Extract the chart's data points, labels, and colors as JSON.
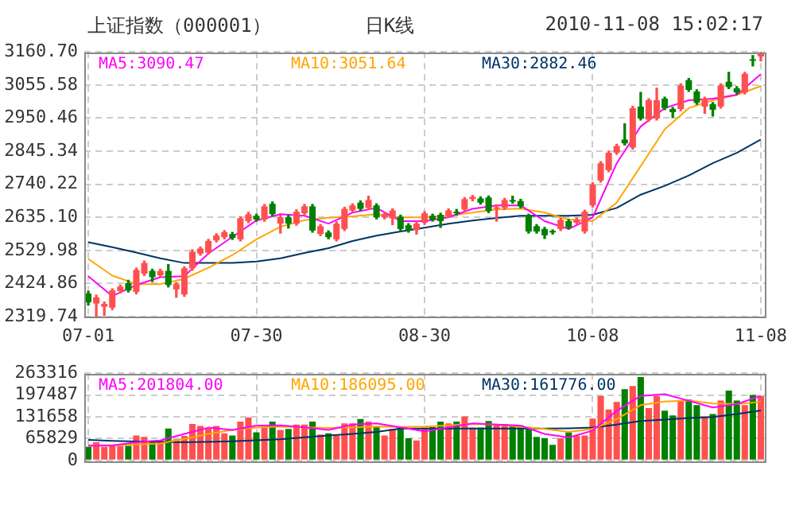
{
  "chart_data": [
    {
      "type": "candlestick",
      "title": "上证指数（000001）",
      "subtitle": "日K线",
      "annotations": [
        "2010-11-08 15:02:17"
      ],
      "categories": [
        "07-01",
        null,
        null,
        null,
        null,
        null,
        null,
        null,
        null,
        null,
        null,
        null,
        null,
        null,
        null,
        null,
        null,
        null,
        null,
        null,
        null,
        "07-30",
        null,
        null,
        null,
        null,
        null,
        null,
        null,
        null,
        null,
        null,
        null,
        null,
        null,
        null,
        null,
        null,
        null,
        null,
        null,
        null,
        "08-30",
        null,
        null,
        null,
        null,
        null,
        null,
        null,
        null,
        null,
        null,
        null,
        null,
        null,
        null,
        null,
        null,
        null,
        null,
        null,
        null,
        "10-08",
        null,
        null,
        null,
        null,
        null,
        null,
        null,
        null,
        null,
        null,
        null,
        null,
        null,
        null,
        null,
        null,
        null,
        null,
        null,
        null,
        "11-08"
      ],
      "ohlc": [
        [
          2393,
          2400,
          2356,
          2365
        ],
        [
          2361,
          2388,
          2319.74,
          2381
        ],
        [
          2351,
          2366,
          2323,
          2360
        ],
        [
          2348,
          2408,
          2342,
          2403
        ],
        [
          2401,
          2420,
          2395,
          2415
        ],
        [
          2426,
          2435,
          2398,
          2403
        ],
        [
          2398,
          2474,
          2392,
          2468
        ],
        [
          2456,
          2496,
          2450,
          2490
        ],
        [
          2465,
          2470,
          2431,
          2445
        ],
        [
          2451,
          2470,
          2446,
          2465
        ],
        [
          2465,
          2485,
          2414,
          2420
        ],
        [
          2406,
          2428,
          2381,
          2423
        ],
        [
          2390,
          2478,
          2384,
          2473
        ],
        [
          2473,
          2532,
          2467,
          2526
        ],
        [
          2520,
          2541,
          2515,
          2536
        ],
        [
          2523,
          2565,
          2518,
          2560
        ],
        [
          2562,
          2583,
          2557,
          2578
        ],
        [
          2572,
          2593,
          2567,
          2588
        ],
        [
          2582,
          2587,
          2565,
          2570
        ],
        [
          2565,
          2637,
          2560,
          2632
        ],
        [
          2623,
          2651,
          2618,
          2645
        ],
        [
          2640,
          2645,
          2623,
          2628
        ],
        [
          2628,
          2676,
          2623,
          2670
        ],
        [
          2678,
          2684,
          2640,
          2645
        ],
        [
          2615,
          2641,
          2585,
          2635
        ],
        [
          2635,
          2641,
          2601,
          2615
        ],
        [
          2615,
          2659,
          2610,
          2653
        ],
        [
          2648,
          2676,
          2643,
          2670
        ],
        [
          2670,
          2676,
          2588,
          2593
        ],
        [
          2582,
          2612,
          2577,
          2607
        ],
        [
          2587,
          2592,
          2567,
          2572
        ],
        [
          2565,
          2621,
          2560,
          2615
        ],
        [
          2598,
          2667,
          2593,
          2662
        ],
        [
          2657,
          2678,
          2652,
          2673
        ],
        [
          2682,
          2687,
          2657,
          2662
        ],
        [
          2665,
          2702,
          2660,
          2690
        ],
        [
          2673,
          2678,
          2630,
          2635
        ],
        [
          2635,
          2651,
          2630,
          2645
        ],
        [
          2632,
          2662,
          2612,
          2657
        ],
        [
          2637,
          2642,
          2593,
          2598
        ],
        [
          2610,
          2615,
          2588,
          2593
        ],
        [
          2595,
          2621,
          2582,
          2615
        ],
        [
          2618,
          2653,
          2613,
          2648
        ],
        [
          2640,
          2645,
          2623,
          2628
        ],
        [
          2643,
          2648,
          2603,
          2623
        ],
        [
          2640,
          2662,
          2635,
          2657
        ],
        [
          2653,
          2660,
          2642,
          2648
        ],
        [
          2660,
          2698,
          2655,
          2693
        ],
        [
          2693,
          2705,
          2688,
          2700
        ],
        [
          2695,
          2700,
          2677,
          2682
        ],
        [
          2698,
          2703,
          2650,
          2655
        ],
        [
          2662,
          2675,
          2623,
          2665
        ],
        [
          2665,
          2695,
          2660,
          2690
        ],
        [
          2690,
          2702,
          2680,
          2685
        ],
        [
          2687,
          2692,
          2665,
          2670
        ],
        [
          2640,
          2645,
          2585,
          2590
        ],
        [
          2607,
          2612,
          2585,
          2590
        ],
        [
          2598,
          2603,
          2568,
          2578
        ],
        [
          2590,
          2595,
          2582,
          2587
        ],
        [
          2598,
          2632,
          2593,
          2627
        ],
        [
          2623,
          2628,
          2598,
          2603
        ],
        [
          2618,
          2633,
          2613,
          2628
        ],
        [
          2590,
          2658,
          2585,
          2653
        ],
        [
          2673,
          2745,
          2668,
          2740
        ],
        [
          2752,
          2812,
          2747,
          2807
        ],
        [
          2785,
          2845,
          2780,
          2840
        ],
        [
          2840,
          2867,
          2835,
          2862
        ],
        [
          2882,
          2932,
          2865,
          2870
        ],
        [
          2857,
          2988,
          2852,
          2982
        ],
        [
          2987,
          3032,
          2944,
          2949
        ],
        [
          2945,
          3012,
          2940,
          3007
        ],
        [
          2949,
          3045,
          2944,
          3007
        ],
        [
          3012,
          3017,
          2977,
          2982
        ],
        [
          2979,
          2984,
          2952,
          2969
        ],
        [
          2979,
          3059,
          2974,
          3054
        ],
        [
          3071,
          3076,
          3035,
          3040
        ],
        [
          3035,
          3040,
          2994,
          2999
        ],
        [
          2987,
          3017,
          2965,
          3012
        ],
        [
          2995,
          3000,
          2957,
          2977
        ],
        [
          2987,
          3059,
          2982,
          3054
        ],
        [
          3066,
          3096,
          3044,
          3049
        ],
        [
          3045,
          3050,
          3027,
          3032
        ],
        [
          3032,
          3096,
          3027,
          3091
        ],
        [
          3137,
          3149,
          3116,
          3132
        ],
        [
          3146,
          3160.7,
          3132,
          3158
        ]
      ],
      "colors": [
        "#008000",
        "#ff5050",
        "#ff5050",
        "#ff5050",
        "#ff5050",
        "#008000",
        "#ff5050",
        "#ff5050",
        "#008000",
        "#ff5050",
        "#008000",
        "#ff5050",
        "#ff5050",
        "#ff5050",
        "#ff5050",
        "#ff5050",
        "#ff5050",
        "#ff5050",
        "#008000",
        "#ff5050",
        "#ff5050",
        "#008000",
        "#ff5050",
        "#008000",
        "#ff5050",
        "#008000",
        "#ff5050",
        "#ff5050",
        "#008000",
        "#ff5050",
        "#008000",
        "#ff5050",
        "#ff5050",
        "#ff5050",
        "#008000",
        "#ff5050",
        "#008000",
        "#ff5050",
        "#ff5050",
        "#008000",
        "#008000",
        "#ff5050",
        "#ff5050",
        "#008000",
        "#008000",
        "#ff5050",
        "#008000",
        "#ff5050",
        "#ff5050",
        "#008000",
        "#008000",
        "#ff5050",
        "#ff5050",
        "#008000",
        "#008000",
        "#008000",
        "#008000",
        "#008000",
        "#008000",
        "#ff5050",
        "#008000",
        "#ff5050",
        "#ff5050",
        "#ff5050",
        "#ff5050",
        "#ff5050",
        "#ff5050",
        "#008000",
        "#ff5050",
        "#008000",
        "#ff5050",
        "#ff5050",
        "#008000",
        "#008000",
        "#ff5050",
        "#008000",
        "#008000",
        "#ff5050",
        "#008000",
        "#ff5050",
        "#008000",
        "#008000",
        "#ff5050",
        "#008000",
        "#ff5050"
      ],
      "series": [
        {
          "type": "line",
          "name": "MA5:3090.47",
          "color": "#ff00ff",
          "values": [
            2448,
            null,
            null,
            2385,
            null,
            null,
            2420,
            null,
            null,
            2445,
            null,
            null,
            2448,
            null,
            null,
            2520,
            null,
            null,
            2573,
            null,
            null,
            2625,
            null,
            null,
            2645,
            null,
            null,
            2640,
            null,
            null,
            2615,
            null,
            null,
            2650,
            null,
            null,
            2665,
            null,
            null,
            2623,
            null,
            null,
            2623,
            null,
            null,
            2635,
            null,
            null,
            2662,
            null,
            null,
            2673,
            null,
            null,
            2673,
            null,
            null,
            2623,
            null,
            null,
            2598,
            null,
            null,
            2635,
            null,
            null,
            2807,
            null,
            null,
            2924,
            null,
            null,
            2982,
            null,
            null,
            3007,
            null,
            null,
            3012,
            null,
            null,
            3024,
            null,
            null,
            3090
          ]
        },
        {
          "type": "line",
          "name": "MA10:3051.64",
          "color": "#ffa500",
          "values": [
            2503,
            null,
            null,
            2450,
            null,
            null,
            2423,
            null,
            null,
            2423,
            null,
            null,
            2440,
            null,
            null,
            2475,
            null,
            null,
            2515,
            null,
            null,
            2565,
            null,
            null,
            2605,
            null,
            null,
            2626,
            null,
            null,
            2634,
            null,
            null,
            2638,
            null,
            null,
            2645,
            null,
            null,
            2635,
            null,
            null,
            2635,
            null,
            null,
            2640,
            null,
            null,
            2650,
            null,
            null,
            2660,
            null,
            null,
            2663,
            null,
            null,
            2650,
            null,
            null,
            2628,
            null,
            null,
            2623,
            null,
            null,
            2682,
            null,
            null,
            2798,
            null,
            null,
            2915,
            null,
            null,
            2982,
            null,
            null,
            3007,
            null,
            null,
            3024,
            null,
            null,
            3052
          ]
        },
        {
          "type": "line",
          "name": "MA30:2882.46",
          "color": "#003366",
          "values": [
            2556,
            null,
            null,
            2540,
            null,
            null,
            2523,
            null,
            null,
            2505,
            null,
            null,
            2490,
            null,
            null,
            2490,
            null,
            null,
            2490,
            null,
            null,
            2495,
            null,
            null,
            2505,
            null,
            null,
            2522,
            null,
            null,
            2537,
            null,
            null,
            2560,
            null,
            null,
            2577,
            null,
            null,
            2590,
            null,
            null,
            2602,
            null,
            null,
            2615,
            null,
            null,
            2625,
            null,
            null,
            2633,
            null,
            null,
            2640,
            null,
            null,
            2640,
            null,
            null,
            2640,
            null,
            null,
            2643,
            null,
            null,
            2665,
            null,
            null,
            2707,
            null,
            null,
            2735,
            null,
            null,
            2768,
            null,
            null,
            2807,
            null,
            null,
            2840,
            null,
            null,
            2882
          ]
        }
      ],
      "ylim": [
        2319.74,
        3160.7
      ],
      "yticks": [
        {
          "value": 2319.74,
          "label": "2319.74"
        },
        {
          "value": 2424.86,
          "label": "2424.86"
        },
        {
          "value": 2529.98,
          "label": "2529.98"
        },
        {
          "value": 2635.1,
          "label": "2635.10"
        },
        {
          "value": 2740.22,
          "label": "2740.22"
        },
        {
          "value": 2845.34,
          "label": "2845.34"
        },
        {
          "value": 2950.46,
          "label": "2950.46"
        },
        {
          "value": 3055.58,
          "label": "3055.58"
        },
        {
          "value": 3160.7,
          "label": "3160.70"
        }
      ],
      "grid": true,
      "legend": "top",
      "marker": "none"
    },
    {
      "type": "bar",
      "categories": [
        null,
        null,
        null,
        null,
        null,
        null,
        null,
        null,
        null,
        null,
        null,
        null,
        null,
        null,
        null,
        null,
        null,
        null,
        null,
        null,
        null,
        null,
        null,
        null,
        null,
        null,
        null,
        null,
        null,
        null,
        null,
        null,
        null,
        null,
        null,
        null,
        null,
        null,
        null,
        null,
        null,
        null,
        null,
        null,
        null,
        null,
        null,
        null,
        null,
        null,
        null,
        null,
        null,
        null,
        null,
        null,
        null,
        null,
        null,
        null,
        null,
        null,
        null,
        null,
        null,
        null,
        null,
        null,
        null,
        null,
        null,
        null,
        null,
        null,
        null,
        null,
        null,
        null,
        null,
        null,
        null,
        null,
        null,
        null,
        null
      ],
      "series": [
        {
          "type": "bar",
          "values": [
            41000,
            55000,
            41000,
            44000,
            44000,
            44000,
            75000,
            71000,
            60000,
            60000,
            96000,
            64000,
            74000,
            110000,
            104000,
            96000,
            104000,
            82000,
            75000,
            117000,
            130000,
            85000,
            101000,
            117000,
            92000,
            95000,
            108000,
            108000,
            117000,
            78000,
            82000,
            75000,
            112000,
            112000,
            125000,
            117000,
            101000,
            75000,
            95000,
            99000,
            67000,
            60000,
            99000,
            101000,
            117000,
            112000,
            117000,
            133000,
            99000,
            99000,
            119000,
            110000,
            110000,
            106000,
            106000,
            101000,
            71000,
            67000,
            47000,
            67000,
            85000,
            75000,
            75000,
            126000,
            195000,
            154000,
            177000,
            215000,
            225000,
            252000,
            158000,
            195000,
            150000,
            136000,
            181000,
            184000,
            167000,
            133000,
            140000,
            181000,
            211000,
            181000,
            167000,
            198000,
            195000
          ],
          "colors": [
            "#008000",
            "#ff5050",
            "#ff5050",
            "#ff5050",
            "#ff5050",
            "#008000",
            "#ff5050",
            "#ff5050",
            "#008000",
            "#ff5050",
            "#008000",
            "#ff5050",
            "#ff5050",
            "#ff5050",
            "#ff5050",
            "#ff5050",
            "#ff5050",
            "#ff5050",
            "#008000",
            "#ff5050",
            "#ff5050",
            "#008000",
            "#ff5050",
            "#008000",
            "#ff5050",
            "#008000",
            "#ff5050",
            "#ff5050",
            "#008000",
            "#ff5050",
            "#008000",
            "#ff5050",
            "#ff5050",
            "#ff5050",
            "#008000",
            "#ff5050",
            "#008000",
            "#ff5050",
            "#ff5050",
            "#008000",
            "#008000",
            "#ff5050",
            "#ff5050",
            "#008000",
            "#008000",
            "#ff5050",
            "#008000",
            "#ff5050",
            "#ff5050",
            "#008000",
            "#008000",
            "#ff5050",
            "#ff5050",
            "#008000",
            "#008000",
            "#008000",
            "#008000",
            "#008000",
            "#008000",
            "#ff5050",
            "#008000",
            "#ff5050",
            "#ff5050",
            "#ff5050",
            "#ff5050",
            "#ff5050",
            "#ff5050",
            "#008000",
            "#ff5050",
            "#008000",
            "#ff5050",
            "#ff5050",
            "#008000",
            "#008000",
            "#ff5050",
            "#008000",
            "#008000",
            "#ff5050",
            "#008000",
            "#ff5050",
            "#008000",
            "#008000",
            "#ff5050",
            "#008000",
            "#ff5050"
          ]
        },
        {
          "type": "line",
          "name": "MA5:201804.00",
          "color": "#ff00ff",
          "values": [
            44000,
            null,
            null,
            45000,
            null,
            null,
            55000,
            null,
            null,
            60000,
            null,
            null,
            80000,
            null,
            null,
            99000,
            null,
            null,
            92000,
            null,
            null,
            105000,
            null,
            null,
            106000,
            null,
            null,
            100000,
            null,
            null,
            92000,
            null,
            null,
            108000,
            null,
            null,
            112000,
            null,
            null,
            100000,
            null,
            null,
            88000,
            null,
            null,
            100000,
            null,
            null,
            112000,
            null,
            null,
            108000,
            null,
            null,
            105000,
            null,
            null,
            80000,
            null,
            null,
            69000,
            null,
            null,
            90000,
            null,
            null,
            150000,
            null,
            null,
            195000,
            null,
            null,
            200000,
            null,
            null,
            180000,
            null,
            null,
            160000,
            null,
            null,
            170000,
            null,
            null,
            195000
          ]
        },
        {
          "type": "line",
          "name": "MA10:186095.00",
          "color": "#ffa500",
          "values": [
            46000,
            null,
            null,
            46000,
            null,
            null,
            48000,
            null,
            null,
            51000,
            null,
            null,
            65000,
            null,
            null,
            80000,
            null,
            null,
            92000,
            null,
            null,
            99000,
            null,
            null,
            102000,
            null,
            null,
            100000,
            null,
            null,
            98000,
            null,
            null,
            100000,
            null,
            null,
            102000,
            null,
            null,
            101000,
            null,
            null,
            102000,
            null,
            null,
            106000,
            null,
            null,
            110000,
            null,
            null,
            108000,
            null,
            null,
            101000,
            null,
            null,
            95000,
            null,
            null,
            86000,
            null,
            null,
            95000,
            null,
            null,
            125000,
            null,
            null,
            167000,
            null,
            null,
            178000,
            null,
            null,
            181000,
            null,
            null,
            172000,
            null,
            null,
            170000,
            null,
            null,
            177000
          ]
        },
        {
          "type": "line",
          "name": "MA30:161776.00",
          "color": "#003366",
          "values": [
            62000,
            null,
            null,
            59000,
            null,
            null,
            57000,
            null,
            null,
            56000,
            null,
            null,
            55000,
            null,
            null,
            56000,
            null,
            null,
            58000,
            null,
            null,
            61000,
            null,
            null,
            64000,
            null,
            null,
            70000,
            null,
            null,
            75000,
            null,
            null,
            80000,
            null,
            null,
            86000,
            null,
            null,
            96000,
            null,
            null,
            96000,
            null,
            null,
            96000,
            null,
            null,
            96000,
            null,
            null,
            96000,
            null,
            null,
            96000,
            null,
            null,
            96000,
            null,
            null,
            97000,
            null,
            null,
            99000,
            null,
            null,
            108000,
            null,
            null,
            119000,
            null,
            null,
            123000,
            null,
            null,
            128000,
            null,
            null,
            131000,
            null,
            null,
            140000,
            null,
            null,
            151000
          ]
        }
      ],
      "ylim": [
        0,
        263316
      ],
      "yticks": [
        0,
        65829,
        131658,
        197487,
        263316
      ],
      "grid": true,
      "legend": "top",
      "marker": "none",
      "tick_labels": "y"
    }
  ]
}
